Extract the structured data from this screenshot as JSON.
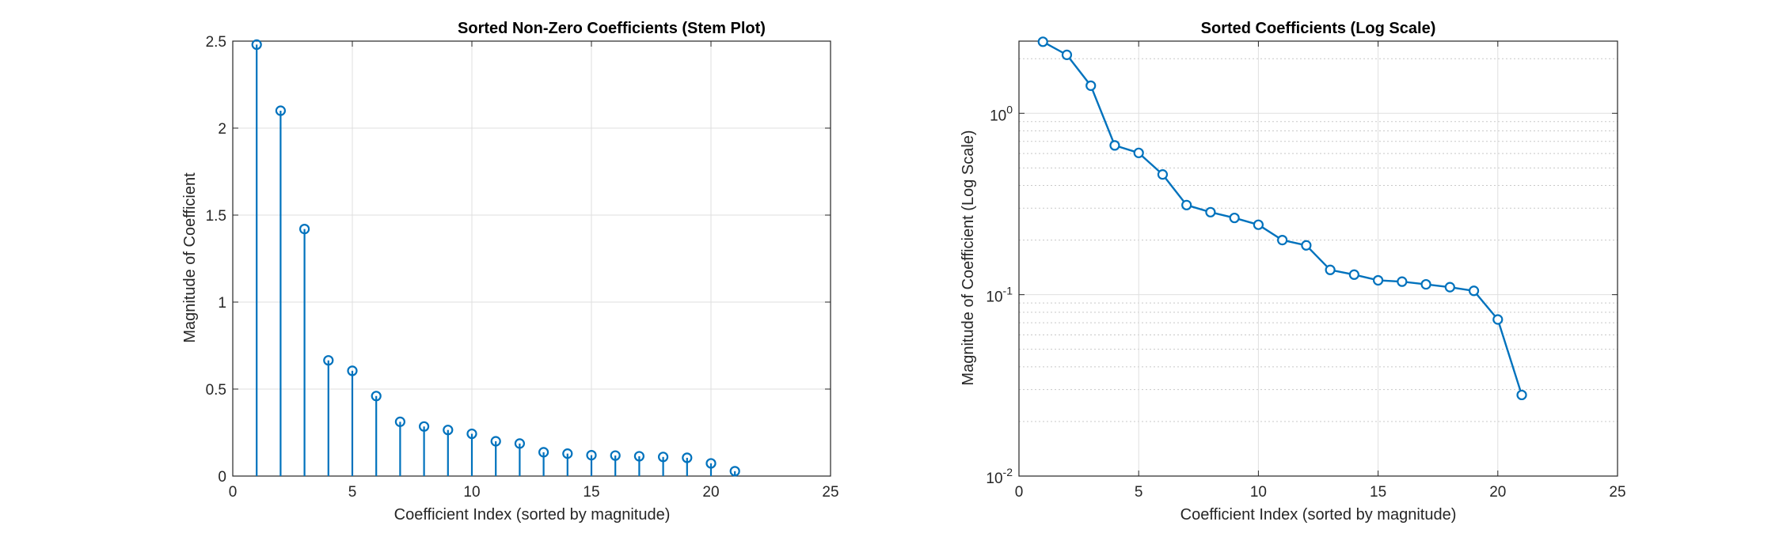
{
  "colors": {
    "series": "#0072BD",
    "axis": "#262626",
    "grid": "#dfdfdf",
    "minor_grid": "#c8c8c8"
  },
  "chart_data": [
    {
      "type": "stem",
      "title": "Sorted Non-Zero Coefficients (Stem Plot)",
      "xlabel": "Coefficient Index (sorted by magnitude)",
      "ylabel": "Magnitude of Coefficient",
      "xlim": [
        0,
        25
      ],
      "ylim": [
        0,
        2.5
      ],
      "xscale": "linear",
      "yscale": "linear",
      "grid": true,
      "x_ticks": [
        0,
        5,
        10,
        15,
        20,
        25
      ],
      "x_tick_labels": [
        "0",
        "5",
        "10",
        "15",
        "20",
        "25"
      ],
      "y_ticks": [
        0,
        0.5,
        1,
        1.5,
        2,
        2.5
      ],
      "y_tick_labels": [
        "0",
        "0.5",
        "1",
        "1.5",
        "2",
        "2.5"
      ],
      "x": [
        1,
        2,
        3,
        4,
        5,
        6,
        7,
        8,
        9,
        10,
        11,
        12,
        13,
        14,
        15,
        16,
        17,
        18,
        19,
        20,
        21
      ],
      "y": [
        2.48,
        2.1,
        1.42,
        0.665,
        0.605,
        0.46,
        0.312,
        0.285,
        0.265,
        0.243,
        0.2,
        0.187,
        0.137,
        0.129,
        0.12,
        0.118,
        0.114,
        0.11,
        0.105,
        0.073,
        0.028
      ]
    },
    {
      "type": "line",
      "title": "Sorted Coefficients (Log Scale)",
      "xlabel": "Coefficient Index (sorted by magnitude)",
      "ylabel": "Magnitude of Coefficient (Log Scale)",
      "xlim": [
        0,
        25
      ],
      "ylim": [
        0.01,
        2.5
      ],
      "xscale": "linear",
      "yscale": "log",
      "grid": true,
      "minor_grid": true,
      "x_ticks": [
        0,
        5,
        10,
        15,
        20,
        25
      ],
      "x_tick_labels": [
        "0",
        "5",
        "10",
        "15",
        "20",
        "25"
      ],
      "y_ticks": [
        0.01,
        0.1,
        1
      ],
      "y_tick_labels": [
        {
          "base": "10",
          "exp": "-2"
        },
        {
          "base": "10",
          "exp": "-1"
        },
        {
          "base": "10",
          "exp": "0"
        }
      ],
      "x": [
        1,
        2,
        3,
        4,
        5,
        6,
        7,
        8,
        9,
        10,
        11,
        12,
        13,
        14,
        15,
        16,
        17,
        18,
        19,
        20,
        21
      ],
      "y": [
        2.48,
        2.1,
        1.42,
        0.665,
        0.605,
        0.46,
        0.312,
        0.285,
        0.265,
        0.243,
        0.2,
        0.187,
        0.137,
        0.129,
        0.12,
        0.118,
        0.114,
        0.11,
        0.105,
        0.073,
        0.028
      ]
    }
  ]
}
